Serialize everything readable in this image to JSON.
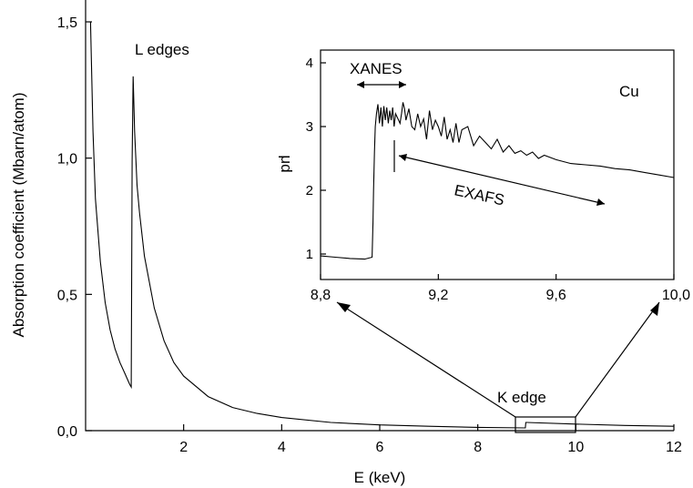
{
  "chart_data": [
    {
      "type": "line",
      "xlabel": "E (keV)",
      "ylabel": "Absorption coefficient (Mbarn/atom)",
      "xlim": [
        0,
        12
      ],
      "ylim": [
        0,
        1.5
      ],
      "x_ticks": [
        2,
        4,
        6,
        8,
        10,
        12
      ],
      "x_tick_labels": [
        "2",
        "4",
        "6",
        "8",
        "10",
        "12"
      ],
      "y_ticks": [
        0,
        0.5,
        1.0,
        1.5
      ],
      "y_tick_labels": [
        "0,0",
        "0,5",
        "1,0",
        "1,5"
      ],
      "grid": false,
      "annotations": [
        "L edges",
        "K edge"
      ],
      "series": [
        {
          "x": [
            0.1,
            0.15,
            0.2,
            0.3,
            0.4,
            0.5,
            0.6,
            0.7,
            0.8,
            0.9,
            0.93,
            0.95,
            0.97,
            1.0,
            1.05,
            1.1,
            1.2,
            1.4,
            1.6,
            1.8,
            2.0,
            2.5,
            3.0,
            3.5,
            4.0,
            5.0,
            6.0,
            7.0,
            8.0,
            8.97,
            8.98,
            9.0,
            10.0,
            11.0,
            12.0
          ],
          "y": [
            1.5,
            1.1,
            0.85,
            0.62,
            0.47,
            0.37,
            0.3,
            0.25,
            0.21,
            0.17,
            0.16,
            0.99,
            1.3,
            1.1,
            0.9,
            0.8,
            0.64,
            0.45,
            0.33,
            0.25,
            0.2,
            0.125,
            0.085,
            0.063,
            0.048,
            0.03,
            0.021,
            0.016,
            0.012,
            0.01,
            0.03,
            0.03,
            0.024,
            0.019,
            0.016
          ]
        }
      ]
    },
    {
      "type": "line",
      "xlabel": "",
      "ylabel": "μd",
      "xlim": [
        8.8,
        10.0
      ],
      "ylim": [
        0.6,
        4.2
      ],
      "x_ticks": [
        8.8,
        9.2,
        9.6,
        10.0
      ],
      "x_tick_labels": [
        "8,8",
        "9,2",
        "9,6",
        "10,0"
      ],
      "y_ticks": [
        1,
        2,
        3,
        4
      ],
      "y_tick_labels": [
        "1",
        "2",
        "3",
        "4"
      ],
      "grid": false,
      "annotations": [
        "XANES",
        "Cu",
        "EXAFS"
      ],
      "series": [
        {
          "x": [
            8.8,
            8.85,
            8.9,
            8.95,
            8.975,
            8.978,
            8.98,
            8.983,
            8.986,
            8.99,
            8.995,
            9.0,
            9.005,
            9.01,
            9.015,
            9.02,
            9.025,
            9.03,
            9.035,
            9.04,
            9.045,
            9.05,
            9.055,
            9.06,
            9.065,
            9.07,
            9.075,
            9.08,
            9.085,
            9.09,
            9.1,
            9.11,
            9.12,
            9.13,
            9.14,
            9.15,
            9.16,
            9.17,
            9.18,
            9.19,
            9.2,
            9.21,
            9.22,
            9.23,
            9.24,
            9.25,
            9.26,
            9.27,
            9.28,
            9.3,
            9.32,
            9.34,
            9.36,
            9.38,
            9.4,
            9.42,
            9.44,
            9.46,
            9.48,
            9.5,
            9.52,
            9.54,
            9.56,
            9.6,
            9.65,
            9.7,
            9.75,
            9.8,
            9.85,
            9.9,
            9.95,
            10.0
          ],
          "y": [
            0.97,
            0.95,
            0.93,
            0.92,
            0.95,
            1.5,
            2.0,
            2.6,
            3.0,
            3.2,
            3.35,
            3.05,
            3.3,
            3.0,
            3.32,
            3.1,
            3.3,
            3.05,
            3.25,
            3.1,
            3.3,
            3.0,
            3.2,
            3.15,
            3.1,
            3.05,
            3.2,
            3.38,
            3.28,
            3.1,
            3.28,
            3.0,
            2.95,
            3.2,
            3.0,
            3.12,
            2.8,
            3.25,
            2.95,
            3.1,
            3.0,
            2.85,
            3.15,
            2.8,
            2.95,
            2.75,
            3.05,
            2.75,
            2.95,
            3.0,
            2.7,
            2.85,
            2.75,
            2.65,
            2.8,
            2.6,
            2.7,
            2.58,
            2.62,
            2.55,
            2.6,
            2.5,
            2.55,
            2.48,
            2.42,
            2.4,
            2.38,
            2.34,
            2.32,
            2.28,
            2.24,
            2.2
          ]
        }
      ]
    }
  ]
}
